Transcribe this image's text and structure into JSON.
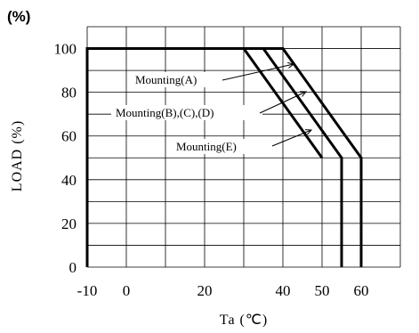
{
  "chart_data": {
    "type": "line",
    "title": "",
    "unit_label": "(%)",
    "xlabel": "Ta (℃)",
    "ylabel": "LOAD (%)",
    "xlim": [
      -10,
      70
    ],
    "ylim": [
      0,
      110
    ],
    "grid": true,
    "x_ticks": [
      -10,
      0,
      20,
      40,
      50,
      60
    ],
    "x_tick_labels": [
      "-10",
      "0",
      "20",
      "40",
      "50",
      "60"
    ],
    "y_ticks": [
      0,
      20,
      40,
      60,
      80,
      100
    ],
    "y_tick_labels": [
      "0",
      "20",
      "40",
      "60",
      "80",
      "100"
    ],
    "series": [
      {
        "name": "Mounting(E)",
        "x": [
          -10,
          -10,
          30,
          50,
          50
        ],
        "y": [
          0,
          100,
          100,
          50,
          50
        ]
      },
      {
        "name": "Mounting(B),(C),(D)",
        "x": [
          -10,
          35,
          55,
          55
        ],
        "y": [
          100,
          100,
          50,
          0
        ]
      },
      {
        "name": "Mounting(A)",
        "x": [
          -10,
          40,
          60,
          60
        ],
        "y": [
          100,
          100,
          50,
          0
        ]
      }
    ],
    "annotations": [
      {
        "text": "Mounting(A)",
        "series": "Mounting(A)"
      },
      {
        "text": "Mounting(B),(C),(D)",
        "series": "Mounting(B),(C),(D)"
      },
      {
        "text": "Mounting(E)",
        "series": "Mounting(E)"
      }
    ]
  }
}
